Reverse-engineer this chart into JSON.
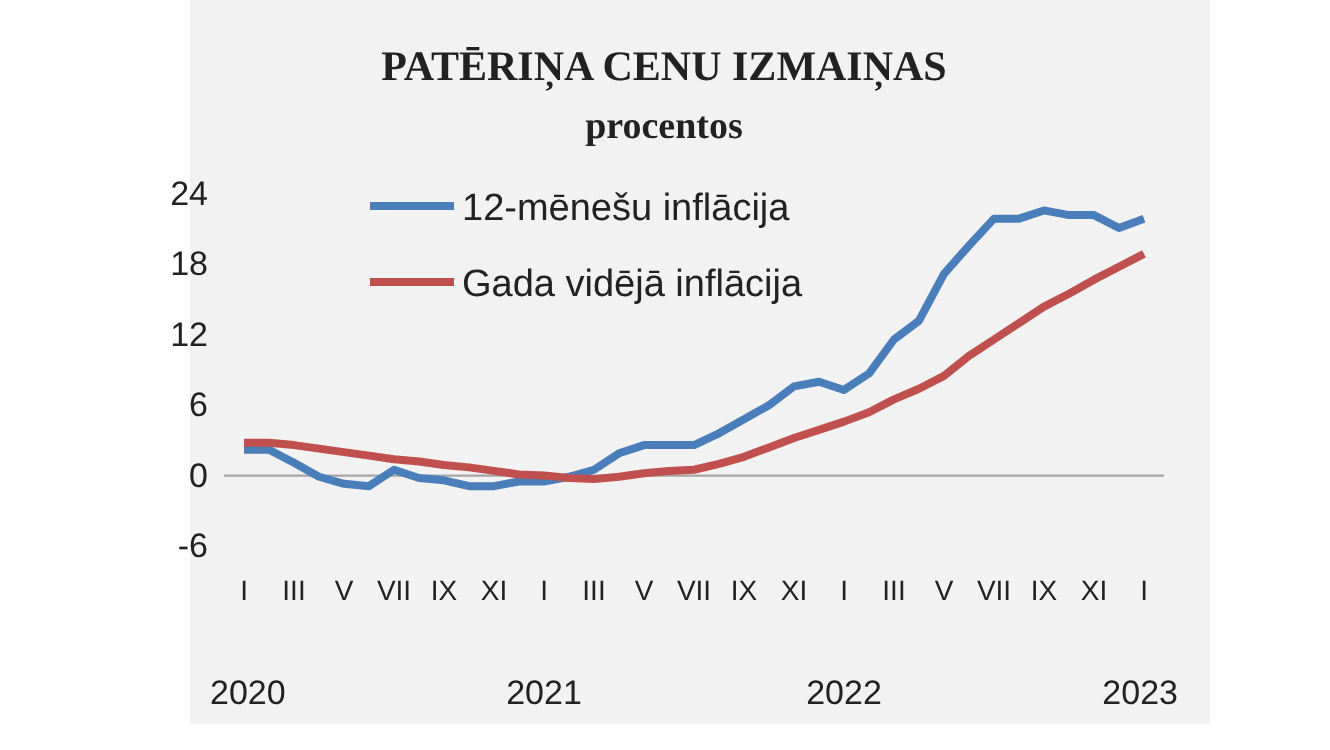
{
  "chart_data": {
    "type": "line",
    "title": "PATĒRIŅA CENU IZMAIŅAS",
    "subtitle": "procentos",
    "categories": [
      "I",
      null,
      "III",
      null,
      "V",
      null,
      "VII",
      null,
      "IX",
      null,
      "XI",
      null,
      "I",
      null,
      "III",
      null,
      "V",
      null,
      "VII",
      null,
      "IX",
      null,
      "XI",
      null,
      "I",
      null,
      "III",
      null,
      "V",
      null,
      "VII",
      null,
      "IX",
      null,
      "XI",
      null,
      "I"
    ],
    "annotations": [
      "2020",
      "2021",
      "2022",
      "2023"
    ],
    "series": [
      {
        "name": "12-mēnešu inflācija",
        "color": "#4a7ebb",
        "values": [
          2.2,
          2.2,
          1.1,
          -0.1,
          -0.7,
          -0.9,
          0.5,
          -0.2,
          -0.4,
          -0.9,
          -0.9,
          -0.5,
          -0.5,
          -0.1,
          0.5,
          1.9,
          2.6,
          2.6,
          2.6,
          3.6,
          4.8,
          6.0,
          7.6,
          8.0,
          7.3,
          8.7,
          11.6,
          13.2,
          17.2,
          19.6,
          21.9,
          21.9,
          22.6,
          22.2,
          22.2,
          21.1,
          21.9
        ]
      },
      {
        "name": "Gada vidējā inflācija",
        "color": "#c0504d",
        "values": [
          2.8,
          2.8,
          2.6,
          2.3,
          2.0,
          1.7,
          1.4,
          1.2,
          0.9,
          0.7,
          0.4,
          0.1,
          0.0,
          -0.2,
          -0.3,
          -0.1,
          0.2,
          0.4,
          0.5,
          1.0,
          1.6,
          2.4,
          3.2,
          3.9,
          4.6,
          5.4,
          6.5,
          7.4,
          8.5,
          10.2,
          11.6,
          13.0,
          14.4,
          15.5,
          16.7,
          17.8,
          18.9
        ]
      }
    ],
    "ylim": [
      -6,
      24
    ],
    "yticks": [
      -6,
      0,
      6,
      12,
      18,
      24
    ],
    "ref_lines": [
      {
        "axis": "y",
        "value": 0,
        "color": "#a6a6a6"
      }
    ],
    "legend": "top left",
    "grid": false,
    "marker": "none",
    "line_style": "solid"
  }
}
